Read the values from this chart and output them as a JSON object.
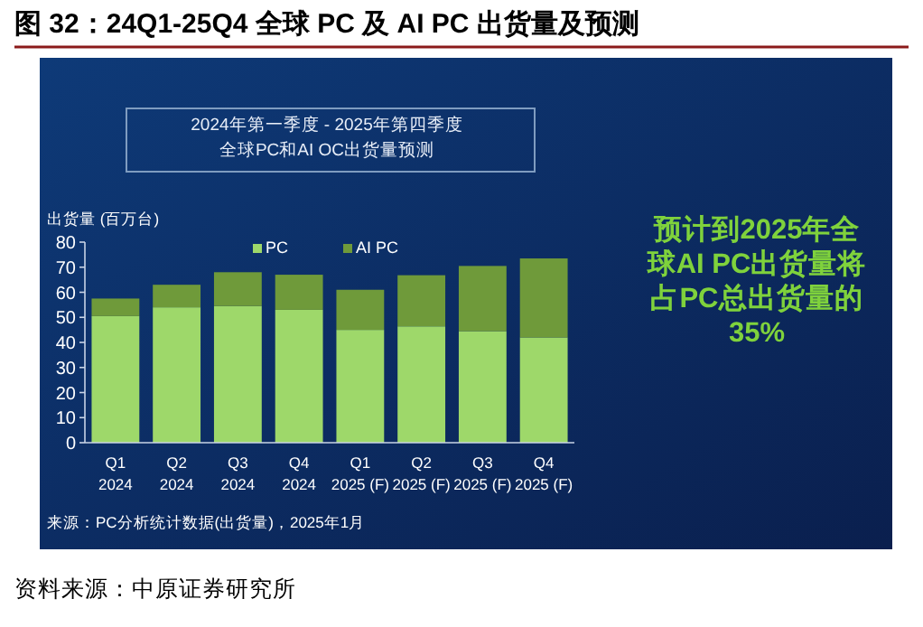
{
  "chart_data": {
    "type": "bar",
    "stacked": true,
    "title": "图 32：24Q1-25Q4 全球 PC 及 AI PC 出货量及预测",
    "subtitle": "2024年第一季度 - 2025年第四季度全球PC和AI OC出货量预测",
    "ylabel": "出货量 (百万台)",
    "categories": [
      "Q1 2024",
      "Q2 2024",
      "Q3 2024",
      "Q4 2024",
      "Q1 2025 (F)",
      "Q2 2025 (F)",
      "Q3 2025 (F)",
      "Q4 2025 (F)"
    ],
    "series": [
      {
        "name": "PC",
        "color": "#9ed86a",
        "values": [
          50.5,
          54,
          54.5,
          53,
          45,
          46.4,
          44.5,
          42
        ]
      },
      {
        "name": "AI PC",
        "color": "#6f9a3a",
        "values": [
          7,
          9,
          13.5,
          14,
          16,
          20.4,
          26,
          31.5
        ]
      }
    ],
    "ylim": [
      0,
      80
    ],
    "yticks": [
      0,
      10,
      20,
      30,
      40,
      50,
      60,
      70,
      80
    ],
    "legend": "top",
    "grid": false,
    "annotations": [
      "预计到2025年全球AI PC出货量将占PC总出货量的35%",
      "来源：PC分析统计数据(出货量)，2025年1月",
      "资料来源：中原证券研究所"
    ]
  }
}
